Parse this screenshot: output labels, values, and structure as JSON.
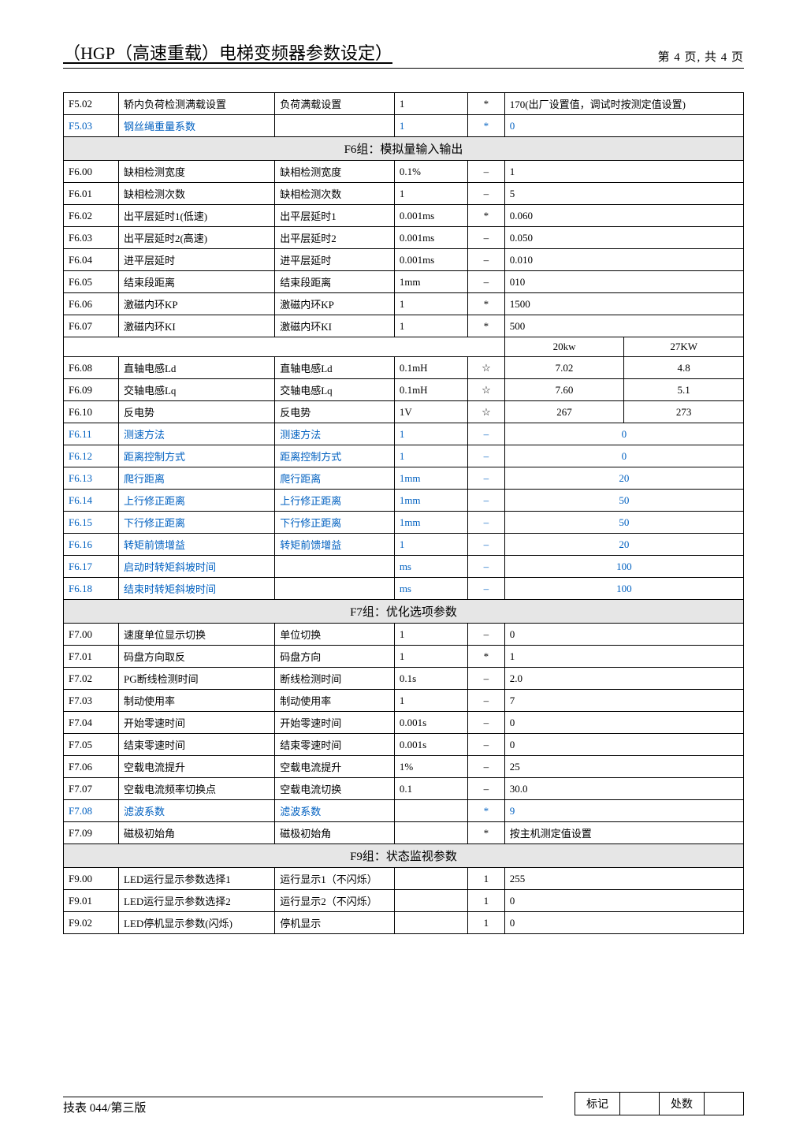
{
  "header": {
    "title": "（HGP（高速重载）电梯变频器参数设定）",
    "page_label": "第 4  页, 共 4  页"
  },
  "colors": {
    "blue": "#0060c0",
    "section_bg": "#e6e6e6"
  },
  "pre_rows": [
    {
      "code": "F5.02",
      "name": "轿内负荷检测满载设置",
      "short": "负荷满载设置",
      "unit": "1",
      "sym": "*",
      "val": "170(出厂设置值，调试时按测定值设置)",
      "blue": false
    },
    {
      "code": "F5.03",
      "name": "钢丝绳重量系数",
      "short": "",
      "unit": "1",
      "sym": "*",
      "val": "0",
      "blue": true
    }
  ],
  "f6": {
    "title": "F6组：模拟量输入输出",
    "rows1": [
      {
        "code": "F6.00",
        "name": "缺相检测宽度",
        "short": "缺相检测宽度",
        "unit": "0.1%",
        "sym": "–",
        "val": "1"
      },
      {
        "code": "F6.01",
        "name": "缺相检测次数",
        "short": "缺相检测次数",
        "unit": "1",
        "sym": "–",
        "val": "5"
      },
      {
        "code": "F6.02",
        "name": "出平层延时1(低速)",
        "short": "出平层延时1",
        "unit": "0.001ms",
        "sym": "*",
        "val": "0.060"
      },
      {
        "code": "F6.03",
        "name": "出平层延时2(高速)",
        "short": "出平层延时2",
        "unit": "0.001ms",
        "sym": "–",
        "val": "0.050"
      },
      {
        "code": "F6.04",
        "name": "进平层延时",
        "short": "进平层延时",
        "unit": "0.001ms",
        "sym": "–",
        "val": "0.010"
      },
      {
        "code": "F6.05",
        "name": "结束段距离",
        "short": "结束段距离",
        "unit": "1mm",
        "sym": "–",
        "val": "010"
      },
      {
        "code": "F6.06",
        "name": "激磁内环KP",
        "short": "激磁内环KP",
        "unit": "1",
        "sym": "*",
        "val": "1500"
      },
      {
        "code": "F6.07",
        "name": "激磁内环KI",
        "short": "激磁内环KI",
        "unit": "1",
        "sym": "*",
        "val": "500"
      }
    ],
    "split_header": {
      "a": "20kw",
      "b": "27KW"
    },
    "rows_split": [
      {
        "code": "F6.08",
        "name": "直轴电感Ld",
        "short": "直轴电感Ld",
        "unit": "0.1mH",
        "sym": "☆",
        "a": "7.02",
        "b": "4.8"
      },
      {
        "code": "F6.09",
        "name": "交轴电感Lq",
        "short": "交轴电感Lq",
        "unit": "0.1mH",
        "sym": "☆",
        "a": "7.60",
        "b": "5.1"
      },
      {
        "code": "F6.10",
        "name": "反电势",
        "short": "反电势",
        "unit": "1V",
        "sym": "☆",
        "a": "267",
        "b": "273"
      }
    ],
    "rows_blue": [
      {
        "code": "F6.11",
        "name": "测速方法",
        "short": "测速方法",
        "unit": "1",
        "sym": "–",
        "val": "0"
      },
      {
        "code": "F6.12",
        "name": "距离控制方式",
        "short": "距离控制方式",
        "unit": "1",
        "sym": "–",
        "val": "0"
      },
      {
        "code": "F6.13",
        "name": "爬行距离",
        "short": "爬行距离",
        "unit": "1mm",
        "sym": "–",
        "val": "20"
      },
      {
        "code": "F6.14",
        "name": "上行修正距离",
        "short": "上行修正距离",
        "unit": "1mm",
        "sym": "–",
        "val": "50"
      },
      {
        "code": "F6.15",
        "name": "下行修正距离",
        "short": "下行修正距离",
        "unit": "1mm",
        "sym": "–",
        "val": "50"
      },
      {
        "code": "F6.16",
        "name": "转矩前馈增益",
        "short": "转矩前馈增益",
        "unit": "1",
        "sym": "–",
        "val": "20"
      },
      {
        "code": "F6.17",
        "name": "启动时转矩斜坡时间",
        "short": "",
        "unit": "ms",
        "sym": "–",
        "val": "100"
      },
      {
        "code": "F6.18",
        "name": "结束时转矩斜坡时间",
        "short": "",
        "unit": "ms",
        "sym": "–",
        "val": "100"
      }
    ]
  },
  "f7": {
    "title": "F7组：优化选项参数",
    "rows": [
      {
        "code": "F7.00",
        "name": "速度单位显示切换",
        "short": "单位切换",
        "unit": "1",
        "sym": "–",
        "val": "0",
        "blue": false
      },
      {
        "code": "F7.01",
        "name": "码盘方向取反",
        "short": "码盘方向",
        "unit": "1",
        "sym": "*",
        "val": "1",
        "blue": false
      },
      {
        "code": "F7.02",
        "name": "PG断线检测时间",
        "short": "断线检测时间",
        "unit": "0.1s",
        "sym": "–",
        "val": "2.0",
        "blue": false
      },
      {
        "code": "F7.03",
        "name": "制动使用率",
        "short": "制动使用率",
        "unit": "1",
        "sym": "–",
        "val": "7",
        "blue": false
      },
      {
        "code": "F7.04",
        "name": "开始零速时间",
        "short": "开始零速时间",
        "unit": "0.001s",
        "sym": "–",
        "val": "0",
        "blue": false
      },
      {
        "code": "F7.05",
        "name": "结束零速时间",
        "short": "结束零速时间",
        "unit": "0.001s",
        "sym": "–",
        "val": "0",
        "blue": false
      },
      {
        "code": "F7.06",
        "name": "空载电流提升",
        "short": "空载电流提升",
        "unit": "1%",
        "sym": "–",
        "val": "25",
        "blue": false
      },
      {
        "code": "F7.07",
        "name": "空载电流频率切换点",
        "short": "空载电流切换",
        "unit": "0.1",
        "sym": "–",
        "val": "30.0",
        "blue": false
      },
      {
        "code": "F7.08",
        "name": "滤波系数",
        "short": "滤波系数",
        "unit": "",
        "sym": "*",
        "val": "9",
        "blue": true
      },
      {
        "code": "F7.09",
        "name": "磁极初始角",
        "short": "磁极初始角",
        "unit": "",
        "sym": "*",
        "val": "按主机测定值设置",
        "blue": false
      }
    ]
  },
  "f9": {
    "title": "F9组：状态监视参数",
    "rows": [
      {
        "code": "F9.00",
        "name": "LED运行显示参数选择1",
        "short": "运行显示1（不闪烁）",
        "unit": "",
        "sym": "1",
        "val": "255"
      },
      {
        "code": "F9.01",
        "name": "LED运行显示参数选择2",
        "short": "运行显示2（不闪烁）",
        "unit": "",
        "sym": "1",
        "val": "0"
      },
      {
        "code": "F9.02",
        "name": "LED停机显示参数(闪烁)",
        "short": "停机显示",
        "unit": "",
        "sym": "1",
        "val": "0"
      }
    ]
  },
  "footer": {
    "left": "技表 044/第三版",
    "sig_a": "标记",
    "sig_b": "处数"
  }
}
